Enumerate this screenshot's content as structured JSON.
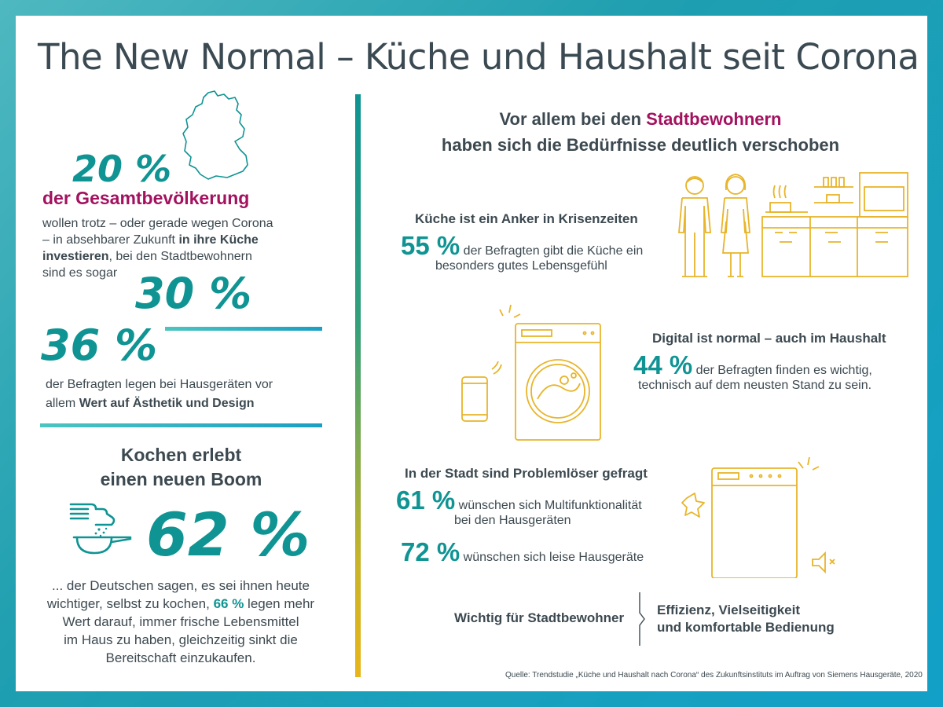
{
  "title": "The New Normal – Küche und Haushalt seit Corona",
  "left": {
    "stat1": {
      "pct": "20 %",
      "label": "der Gesamtbevölkerung",
      "lines": [
        "wollen trotz – oder gerade wegen Corona",
        "– in absehbarer Zukunft "
      ],
      "bold1": "in ihre Küche",
      "bold2": "investieren",
      "line3_rest": ", bei den Stadtbewohnern",
      "line4": "sind es sogar",
      "pct2": "30 %"
    },
    "stat2": {
      "pct": "36 %",
      "line1": "der Befragten legen bei Hausgeräten vor",
      "line2_pre": "allem ",
      "line2_bold": "Wert auf Ästhetik und Design"
    },
    "stat3": {
      "heading1": "Kochen erlebt",
      "heading2": "einen neuen Boom",
      "pct": "62 %",
      "line1": "... der Deutschen sagen, es sei ihnen heute",
      "line2_pre": "wichtiger, selbst zu kochen, ",
      "line2_pct": "66 %",
      "line2_post": " legen mehr",
      "line3": "Wert darauf, immer frische Lebensmittel",
      "line4": "im Haus zu haben, gleichzeitig sinkt die",
      "line5": "Bereitschaft einzukaufen."
    }
  },
  "right": {
    "heading_pre": "Vor allem bei den ",
    "heading_accent": "Stadtbewohnern",
    "heading_line2": "haben sich die Bedürfnisse deutlich verschoben",
    "block1": {
      "title": "Küche ist ein Anker in Krisenzeiten",
      "pct": "55 %",
      "line1": " der Befragten gibt die Küche ein",
      "line2": "besonders gutes Lebensgefühl"
    },
    "block2": {
      "title": "Digital ist normal – auch im Haushalt",
      "pct": "44 %",
      "line1": " der Befragten finden es wichtig,",
      "line2": "technisch auf dem neusten Stand zu sein."
    },
    "block3": {
      "title": "In der Stadt sind Problemlöser gefragt",
      "pct1": "61 %",
      "line1": " wünschen sich Multifunktionalität",
      "line2": "bei den Hausgeräten",
      "pct2": "72 %",
      "line3": " wünschen sich leise Hausgeräte"
    },
    "important": {
      "label": "Wichtig für Stadtbewohner",
      "value1": "Effizienz, Vielseitigkeit",
      "value2": "und komfortable Bedienung"
    },
    "source": "Quelle: Trendstudie „Küche und Haushalt nach Corona“ des Zukunftsinstituts im Auftrag von Siemens Hausgeräte, 2020"
  },
  "colors": {
    "teal": "#0f9493",
    "magenta": "#a3115f",
    "gold": "#e8b42a",
    "text": "#3c4950"
  },
  "icons": [
    "germany-map-icon",
    "cooking-hand-pan-icon",
    "couple-people-icon",
    "kitchen-icon",
    "smartphone-wifi-icon",
    "washing-machine-icon",
    "dishwasher-icon",
    "sparkle-icon",
    "mute-speaker-icon"
  ]
}
